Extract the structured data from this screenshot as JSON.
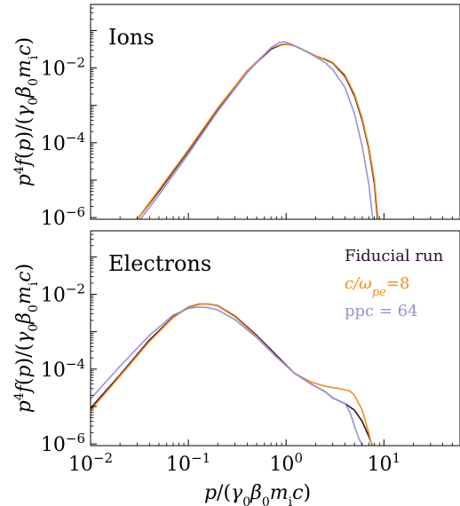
{
  "chart_data": [
    {
      "type": "line",
      "panel_label": "Ions",
      "xscale": "log",
      "yscale": "log",
      "xlim": [
        0.01,
        60
      ],
      "ylim": [
        9e-07,
        0.5
      ],
      "ylabel": "p^4f(p)/(γ0β0m_ic)",
      "xlabel": "",
      "yticks": [
        1e-06,
        0.0001,
        0.01
      ],
      "ytick_labels": [
        "10^-6",
        "10^-4",
        "10^-2"
      ],
      "x_tick_labels_visible": false,
      "series": [
        {
          "name": "Fiducial run",
          "color": "#2b0a2f",
          "x": [
            0.03,
            0.05,
            0.1,
            0.2,
            0.4,
            0.7,
            0.9,
            1.0,
            1.2,
            1.6,
            2.0,
            2.5,
            3.0,
            4.0,
            5.0,
            6.0,
            7.0,
            8.0,
            8.6
          ],
          "y": [
            9e-07,
            5e-06,
            6e-05,
            0.0008,
            0.008,
            0.032,
            0.042,
            0.043,
            0.04,
            0.028,
            0.021,
            0.017,
            0.0135,
            0.006,
            0.0018,
            0.0004,
            7e-05,
            8e-06,
            9e-07
          ]
        },
        {
          "name": "c/ωpe = 8",
          "color": "#f28c1a",
          "x": [
            0.03,
            0.05,
            0.1,
            0.2,
            0.4,
            0.7,
            0.9,
            1.0,
            1.2,
            1.6,
            2.0,
            2.5,
            3.0,
            4.0,
            5.0,
            6.0,
            7.0,
            8.0,
            8.7
          ],
          "y": [
            9e-07,
            5.5e-06,
            6.5e-05,
            0.00085,
            0.0085,
            0.034,
            0.043,
            0.043,
            0.039,
            0.028,
            0.021,
            0.0175,
            0.014,
            0.0065,
            0.002,
            0.00045,
            8e-05,
            1e-05,
            9e-07
          ]
        },
        {
          "name": "ppc = 64",
          "color": "#9b8fd9",
          "x": [
            0.03,
            0.05,
            0.1,
            0.2,
            0.4,
            0.7,
            0.85,
            0.95,
            1.1,
            1.5,
            2.0,
            2.5,
            3.0,
            4.0,
            5.0,
            6.0,
            7.0,
            7.7
          ],
          "y": [
            7e-07,
            4e-06,
            5e-05,
            0.0007,
            0.0075,
            0.035,
            0.048,
            0.05,
            0.045,
            0.03,
            0.02,
            0.014,
            0.009,
            0.003,
            0.0006,
            8e-05,
            8e-06,
            9e-07
          ]
        }
      ]
    },
    {
      "type": "line",
      "panel_label": "Electrons",
      "xscale": "log",
      "yscale": "log",
      "xlim": [
        0.01,
        60
      ],
      "ylim": [
        9e-07,
        0.5
      ],
      "xlabel": "p/(γ0β0m_ic)",
      "ylabel": "p^4f(p)/(γ0β0m_ic)",
      "xticks": [
        0.01,
        0.1,
        1,
        10
      ],
      "xtick_labels": [
        "10^-2",
        "10^-1",
        "10^0",
        "10^1"
      ],
      "yticks": [
        1e-06,
        0.0001,
        0.01
      ],
      "ytick_labels": [
        "10^-6",
        "10^-4",
        "10^-2"
      ],
      "legend": "top-right",
      "series": [
        {
          "name": "Fiducial run",
          "color": "#2b0a2f",
          "x": [
            0.01,
            0.02,
            0.04,
            0.07,
            0.1,
            0.13,
            0.16,
            0.2,
            0.3,
            0.5,
            0.8,
            1.2,
            1.8,
            2.5,
            3.0,
            4.0,
            5.0,
            6.0,
            7.0,
            7.6
          ],
          "y": [
            9e-06,
            7e-05,
            0.0006,
            0.0025,
            0.0045,
            0.0055,
            0.0055,
            0.005,
            0.0026,
            0.0008,
            0.00023,
            8e-05,
            4e-05,
            2.5e-05,
            1.7e-05,
            1.2e-05,
            8e-06,
            4e-06,
            1.6e-06,
            9e-07
          ]
        },
        {
          "name": "c/ωpe = 8",
          "color": "#f28c1a",
          "x": [
            0.01,
            0.02,
            0.04,
            0.07,
            0.1,
            0.13,
            0.16,
            0.2,
            0.3,
            0.5,
            0.8,
            1.2,
            1.8,
            2.5,
            3.0,
            3.5,
            4.0,
            4.5,
            5.0,
            6.0,
            7.0,
            7.5
          ],
          "y": [
            8e-06,
            6.5e-05,
            0.00055,
            0.0024,
            0.0044,
            0.0054,
            0.0055,
            0.0049,
            0.0025,
            0.00075,
            0.00021,
            8e-05,
            4.5e-05,
            3.5e-05,
            3.2e-05,
            3e-05,
            2.8e-05,
            2.6e-05,
            2e-05,
            8e-06,
            2e-06,
            9e-07
          ]
        },
        {
          "name": "ppc = 64",
          "color": "#9b8fd9",
          "x": [
            0.01,
            0.02,
            0.04,
            0.07,
            0.1,
            0.13,
            0.16,
            0.2,
            0.3,
            0.5,
            0.8,
            1.2,
            1.8,
            2.5,
            3.0,
            4.0,
            4.5,
            5.0,
            5.5,
            6.0
          ],
          "y": [
            1.6e-05,
            0.00012,
            0.0008,
            0.0028,
            0.0042,
            0.0046,
            0.0044,
            0.0038,
            0.0021,
            0.0007,
            0.00021,
            8e-05,
            4e-05,
            2.5e-05,
            1.7e-05,
            1.2e-05,
            7e-06,
            3e-06,
            1.5e-06,
            9e-07
          ]
        }
      ]
    }
  ]
}
